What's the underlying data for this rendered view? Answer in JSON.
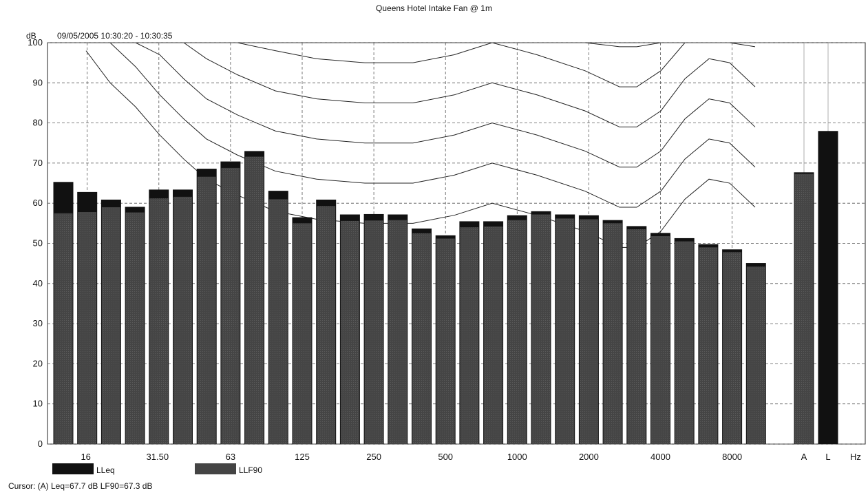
{
  "header": {
    "title": "Queens Hotel Intake Fan @ 1m",
    "ylabel": "dB",
    "time_range": "09/05/2005 10:30:20 - 10:30:35"
  },
  "legend": {
    "items": [
      {
        "label": "LLeq",
        "color": "#111111"
      },
      {
        "label": "LLF90",
        "color": "#444444"
      }
    ]
  },
  "status": {
    "cursor": "Cursor: (A) Leq=67.7 dB LF90=67.3 dB"
  },
  "chart_data": {
    "type": "bar",
    "title": "Queens Hotel Intake Fan @ 1m",
    "ylabel": "dB",
    "xlabel": "Hz",
    "ylim": [
      0,
      100
    ],
    "yticks": [
      0,
      10,
      20,
      30,
      40,
      50,
      60,
      70,
      80,
      90,
      100
    ],
    "grid": true,
    "legend_position": "bottom",
    "categories": [
      "12.5",
      "16",
      "20",
      "25",
      "31.5",
      "40",
      "50",
      "63",
      "80",
      "100",
      "125",
      "160",
      "200",
      "250",
      "315",
      "400",
      "500",
      "630",
      "800",
      "1000",
      "1250",
      "1600",
      "2000",
      "2500",
      "3150",
      "4000",
      "5000",
      "6300",
      "8000",
      "10000",
      "12500",
      "A",
      "L"
    ],
    "x_tick_labels": [
      "16",
      "31.50",
      "63",
      "125",
      "250",
      "500",
      "1000",
      "2000",
      "4000",
      "8000",
      "A",
      "L",
      "Hz"
    ],
    "series": [
      {
        "name": "LLeq",
        "color": "#111111",
        "values": [
          65.3,
          62.8,
          60.9,
          59.1,
          63.4,
          63.4,
          68.6,
          70.4,
          73.0,
          63.1,
          56.5,
          60.9,
          57.2,
          57.3,
          57.2,
          53.7,
          52.0,
          55.5,
          55.5,
          57.0,
          58.0,
          57.2,
          57.0,
          55.8,
          54.3,
          52.6,
          51.3,
          49.8,
          48.5,
          45.1,
          null,
          67.7,
          78.0
        ]
      },
      {
        "name": "LLF90",
        "color": "#444444",
        "values": [
          57.5,
          57.8,
          59.0,
          57.7,
          61.2,
          61.6,
          66.6,
          68.8,
          71.6,
          61.0,
          55.0,
          59.3,
          55.6,
          55.7,
          55.8,
          52.5,
          51.2,
          54.0,
          54.2,
          55.8,
          57.2,
          56.2,
          56.0,
          55.0,
          53.5,
          51.8,
          50.5,
          49.0,
          47.8,
          44.2,
          null,
          67.3,
          null
        ]
      }
    ],
    "overlay_curves": {
      "description_free": true,
      "frequencies": [
        "25",
        "31.5",
        "40",
        "50",
        "63",
        "80",
        "100",
        "125",
        "160",
        "200",
        "250",
        "315",
        "400",
        "500",
        "630",
        "800",
        "1000",
        "1250",
        "1600",
        "2000",
        "2500",
        "3150",
        "4000",
        "5000",
        "6300",
        "8000",
        "10000",
        "12500"
      ]
    }
  }
}
